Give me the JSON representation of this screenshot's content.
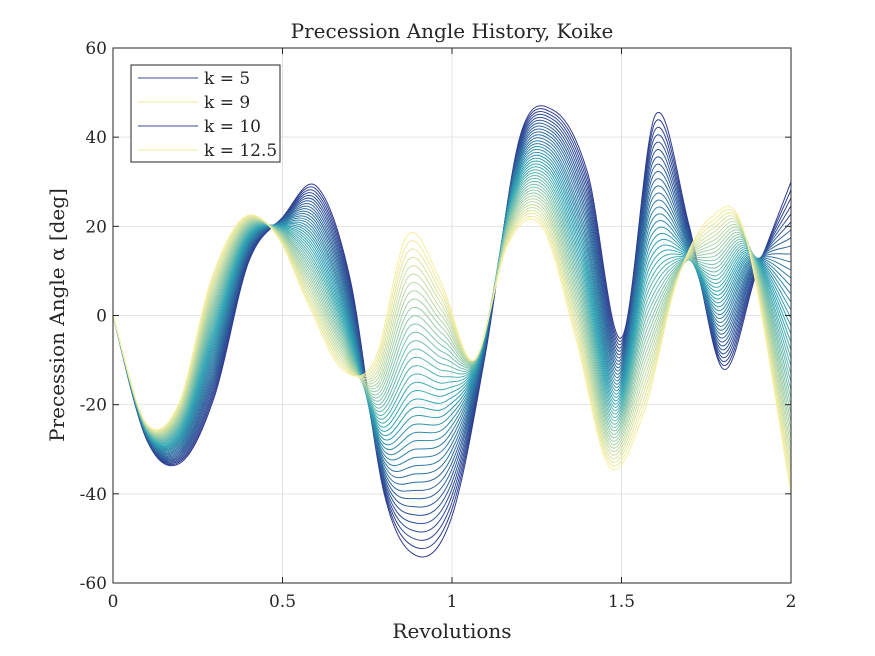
{
  "chart_data": {
    "type": "line",
    "title": "Precession Angle History, Koike",
    "xlabel": "Revolutions",
    "ylabel": "Precession Angle α [deg]",
    "xlim": [
      0,
      2
    ],
    "ylim": [
      -60,
      60
    ],
    "xticks": [
      0,
      0.5,
      1,
      1.5,
      2
    ],
    "xtick_labels": [
      "0",
      "0.5",
      "1",
      "1.5",
      "2"
    ],
    "yticks": [
      -60,
      -40,
      -20,
      0,
      20,
      40,
      60
    ],
    "ytick_labels": [
      "-60",
      "-40",
      "-20",
      "0",
      "20",
      "40",
      "60"
    ],
    "grid": true,
    "legend_position": "top-left",
    "legend": [
      {
        "label": "k = 5",
        "color": "#3b4d9b"
      },
      {
        "label": "k = 9",
        "color": "#f6e79a"
      },
      {
        "label": "k = 10",
        "color": "#3b4d9b"
      },
      {
        "label": "k = 12.5",
        "color": "#f2f09f"
      }
    ],
    "family_count": 40,
    "colors": {
      "dark": "#2e3a8f",
      "mid": "#2fa5b5",
      "light": "#f7ee9f",
      "grid": "#e3e3e3",
      "axis": "#262626"
    },
    "series": [
      {
        "name": "k = 5",
        "x": [
          0,
          0.1,
          0.2,
          0.3,
          0.4,
          0.5,
          0.6,
          0.7,
          0.8,
          0.9,
          1.0,
          1.1,
          1.2,
          1.3,
          1.4,
          1.5,
          1.6,
          1.7,
          1.8,
          1.9,
          2.0
        ],
        "values": [
          0,
          -28,
          -33,
          -18,
          12,
          22,
          29,
          8,
          -40,
          -54,
          -45,
          -8,
          40,
          46,
          32,
          -5,
          45,
          20,
          -12,
          10,
          30
        ]
      },
      {
        "name": "k = 12.5",
        "x": [
          0,
          0.1,
          0.2,
          0.3,
          0.4,
          0.5,
          0.6,
          0.7,
          0.8,
          0.9,
          1.0,
          1.1,
          1.2,
          1.3,
          1.4,
          1.5,
          1.6,
          1.7,
          1.8,
          1.9,
          2.0
        ],
        "values": [
          0,
          -24,
          -20,
          8,
          22,
          18,
          2,
          -12,
          -10,
          18,
          8,
          -10,
          16,
          20,
          -5,
          -34,
          -22,
          8,
          22,
          18,
          -40
        ]
      }
    ]
  }
}
